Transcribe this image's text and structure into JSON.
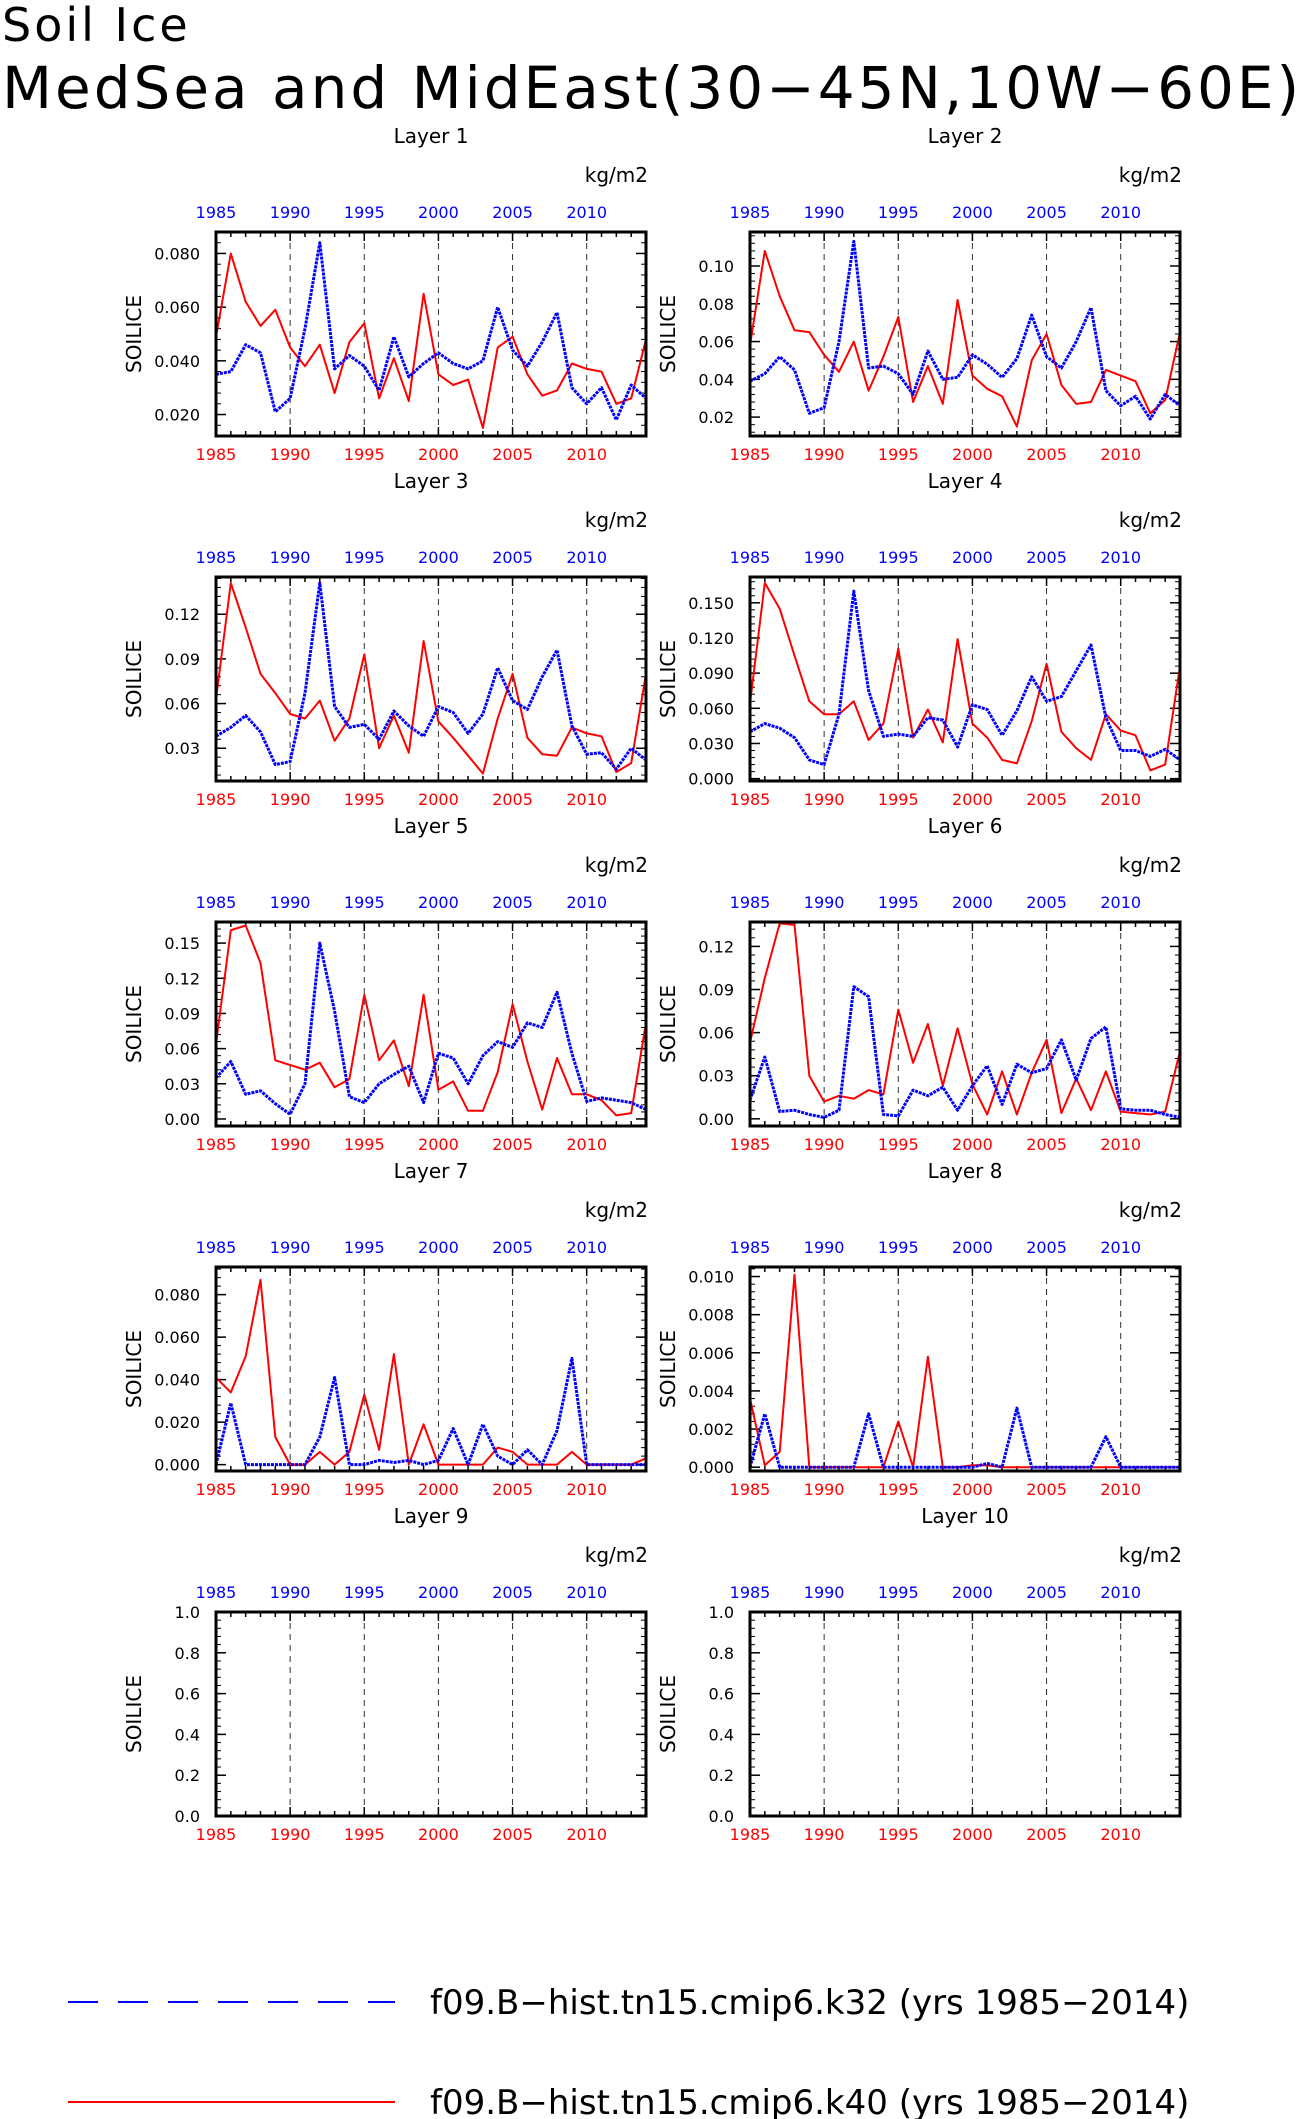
{
  "title": {
    "line1": "Soil Ice",
    "line2": "MedSea and MidEast(30−45N,10W−60E)"
  },
  "colors": {
    "k32": "#0000ff",
    "k40": "#ff0000",
    "axis": "#000000"
  },
  "units_label": "kg/m2",
  "ylabel": "SOILICE",
  "legend": [
    {
      "label": "f09.B−hist.tn15.cmip6.k32 (yrs 1985−2014)",
      "color": "#0000ff",
      "style": "dashed"
    },
    {
      "label": "f09.B−hist.tn15.cmip6.k40 (yrs 1985−2014)",
      "color": "#ff0000",
      "style": "solid"
    }
  ],
  "chart_data": [
    {
      "type": "line",
      "title": "Layer 1",
      "xlim": [
        1985,
        2014
      ],
      "ylim": [
        0.012,
        0.088
      ],
      "x_ticks": [
        1985,
        1990,
        1995,
        2000,
        2005,
        2010
      ],
      "y_ticks": [
        0.02,
        0.04,
        0.06,
        0.08
      ],
      "y_tick_labels": [
        "0.020",
        "0.040",
        "0.060",
        "0.080"
      ],
      "series": [
        {
          "name": "f09.B−hist.tn15.cmip6.k32",
          "values": [
            0.035,
            0.036,
            0.046,
            0.043,
            0.021,
            0.026,
            0.052,
            0.084,
            0.037,
            0.042,
            0.038,
            0.029,
            0.049,
            0.034,
            0.039,
            0.043,
            0.039,
            0.037,
            0.04,
            0.06,
            0.044,
            0.038,
            0.047,
            0.058,
            0.03,
            0.024,
            0.03,
            0.018,
            0.031,
            0.026
          ]
        },
        {
          "name": "f09.B−hist.tn15.cmip6.k40",
          "values": [
            0.049,
            0.08,
            0.062,
            0.053,
            0.059,
            0.045,
            0.038,
            0.046,
            0.028,
            0.047,
            0.054,
            0.026,
            0.041,
            0.025,
            0.065,
            0.035,
            0.031,
            0.033,
            0.015,
            0.045,
            0.049,
            0.035,
            0.027,
            0.029,
            0.039,
            0.037,
            0.036,
            0.024,
            0.026,
            0.048
          ]
        }
      ]
    },
    {
      "type": "line",
      "title": "Layer 2",
      "xlim": [
        1985,
        2014
      ],
      "ylim": [
        0.01,
        0.118
      ],
      "x_ticks": [
        1985,
        1990,
        1995,
        2000,
        2005,
        2010
      ],
      "y_ticks": [
        0.02,
        0.04,
        0.06,
        0.08,
        0.1
      ],
      "y_tick_labels": [
        "0.02",
        "0.04",
        "0.06",
        "0.08",
        "0.10"
      ],
      "series": [
        {
          "name": "f09.B−hist.tn15.cmip6.k32",
          "values": [
            0.039,
            0.043,
            0.052,
            0.045,
            0.022,
            0.025,
            0.06,
            0.113,
            0.046,
            0.047,
            0.043,
            0.032,
            0.055,
            0.04,
            0.041,
            0.053,
            0.048,
            0.041,
            0.051,
            0.074,
            0.052,
            0.046,
            0.06,
            0.078,
            0.034,
            0.026,
            0.031,
            0.019,
            0.032,
            0.026
          ]
        },
        {
          "name": "f09.B−hist.tn15.cmip6.k40",
          "values": [
            0.058,
            0.108,
            0.084,
            0.066,
            0.065,
            0.053,
            0.044,
            0.06,
            0.034,
            0.052,
            0.073,
            0.028,
            0.047,
            0.027,
            0.082,
            0.042,
            0.035,
            0.031,
            0.015,
            0.05,
            0.064,
            0.037,
            0.027,
            0.028,
            0.045,
            0.042,
            0.039,
            0.022,
            0.029,
            0.065
          ]
        }
      ]
    },
    {
      "type": "line",
      "title": "Layer 3",
      "xlim": [
        1985,
        2014
      ],
      "ylim": [
        0.008,
        0.145
      ],
      "x_ticks": [
        1985,
        1990,
        1995,
        2000,
        2005,
        2010
      ],
      "y_ticks": [
        0.03,
        0.06,
        0.09,
        0.12
      ],
      "y_tick_labels": [
        "0.03",
        "0.06",
        "0.09",
        "0.12"
      ],
      "series": [
        {
          "name": "f09.B−hist.tn15.cmip6.k32",
          "values": [
            0.038,
            0.044,
            0.052,
            0.041,
            0.019,
            0.021,
            0.067,
            0.141,
            0.058,
            0.044,
            0.046,
            0.036,
            0.055,
            0.045,
            0.038,
            0.058,
            0.054,
            0.04,
            0.053,
            0.084,
            0.062,
            0.056,
            0.078,
            0.096,
            0.045,
            0.026,
            0.027,
            0.016,
            0.03,
            0.022
          ]
        },
        {
          "name": "f09.B−hist.tn15.cmip6.k40",
          "values": [
            0.063,
            0.141,
            0.111,
            0.08,
            0.067,
            0.053,
            0.05,
            0.062,
            0.035,
            0.05,
            0.093,
            0.03,
            0.052,
            0.027,
            0.102,
            0.048,
            0.037,
            0.025,
            0.013,
            0.05,
            0.08,
            0.037,
            0.026,
            0.025,
            0.044,
            0.04,
            0.038,
            0.014,
            0.02,
            0.08
          ]
        }
      ]
    },
    {
      "type": "line",
      "title": "Layer 4",
      "xlim": [
        1985,
        2014
      ],
      "ylim": [
        -0.002,
        0.172
      ],
      "x_ticks": [
        1985,
        1990,
        1995,
        2000,
        2005,
        2010
      ],
      "y_ticks": [
        0.0,
        0.03,
        0.06,
        0.09,
        0.12,
        0.15
      ],
      "y_tick_labels": [
        "0.000",
        "0.030",
        "0.060",
        "0.090",
        "0.120",
        "0.150"
      ],
      "series": [
        {
          "name": "f09.B−hist.tn15.cmip6.k32",
          "values": [
            0.04,
            0.047,
            0.043,
            0.035,
            0.016,
            0.012,
            0.055,
            0.16,
            0.075,
            0.036,
            0.038,
            0.036,
            0.052,
            0.05,
            0.027,
            0.063,
            0.059,
            0.037,
            0.058,
            0.087,
            0.066,
            0.07,
            0.092,
            0.114,
            0.052,
            0.024,
            0.024,
            0.019,
            0.025,
            0.016
          ]
        },
        {
          "name": "f09.B−hist.tn15.cmip6.k40",
          "values": [
            0.064,
            0.167,
            0.145,
            0.105,
            0.066,
            0.055,
            0.055,
            0.066,
            0.033,
            0.047,
            0.111,
            0.035,
            0.059,
            0.031,
            0.119,
            0.047,
            0.035,
            0.016,
            0.013,
            0.049,
            0.098,
            0.04,
            0.026,
            0.016,
            0.055,
            0.041,
            0.037,
            0.007,
            0.012,
            0.096
          ]
        }
      ]
    },
    {
      "type": "line",
      "title": "Layer 5",
      "xlim": [
        1985,
        2014
      ],
      "ylim": [
        -0.006,
        0.168
      ],
      "x_ticks": [
        1985,
        1990,
        1995,
        2000,
        2005,
        2010
      ],
      "y_ticks": [
        0.0,
        0.03,
        0.06,
        0.09,
        0.12,
        0.15
      ],
      "y_tick_labels": [
        "0.00",
        "0.03",
        "0.06",
        "0.09",
        "0.12",
        "0.15"
      ],
      "series": [
        {
          "name": "f09.B−hist.tn15.cmip6.k32",
          "values": [
            0.035,
            0.049,
            0.021,
            0.024,
            0.013,
            0.004,
            0.03,
            0.15,
            0.092,
            0.019,
            0.014,
            0.03,
            0.038,
            0.045,
            0.014,
            0.056,
            0.052,
            0.03,
            0.054,
            0.066,
            0.061,
            0.082,
            0.078,
            0.108,
            0.056,
            0.015,
            0.018,
            0.016,
            0.014,
            0.008
          ]
        },
        {
          "name": "f09.B−hist.tn15.cmip6.k40",
          "values": [
            0.064,
            0.161,
            0.165,
            0.133,
            0.05,
            0.046,
            0.042,
            0.048,
            0.027,
            0.034,
            0.106,
            0.05,
            0.067,
            0.028,
            0.106,
            0.025,
            0.032,
            0.007,
            0.007,
            0.04,
            0.098,
            0.049,
            0.008,
            0.052,
            0.021,
            0.021,
            0.016,
            0.003,
            0.005,
            0.082
          ]
        }
      ]
    },
    {
      "type": "line",
      "title": "Layer 6",
      "xlim": [
        1985,
        2014
      ],
      "ylim": [
        -0.005,
        0.137
      ],
      "x_ticks": [
        1985,
        1990,
        1995,
        2000,
        2005,
        2010
      ],
      "y_ticks": [
        0.0,
        0.03,
        0.06,
        0.09,
        0.12
      ],
      "y_tick_labels": [
        "0.00",
        "0.03",
        "0.06",
        "0.09",
        "0.12"
      ],
      "series": [
        {
          "name": "f09.B−hist.tn15.cmip6.k32",
          "values": [
            0.013,
            0.043,
            0.005,
            0.006,
            0.003,
            0.001,
            0.006,
            0.092,
            0.085,
            0.003,
            0.002,
            0.02,
            0.016,
            0.022,
            0.006,
            0.023,
            0.037,
            0.01,
            0.038,
            0.032,
            0.035,
            0.055,
            0.027,
            0.056,
            0.064,
            0.007,
            0.006,
            0.006,
            0.003,
            0.001
          ]
        },
        {
          "name": "f09.B−hist.tn15.cmip6.k40",
          "values": [
            0.053,
            0.098,
            0.136,
            0.135,
            0.03,
            0.012,
            0.016,
            0.014,
            0.02,
            0.017,
            0.076,
            0.039,
            0.066,
            0.023,
            0.063,
            0.024,
            0.003,
            0.033,
            0.003,
            0.032,
            0.055,
            0.004,
            0.028,
            0.006,
            0.033,
            0.005,
            0.004,
            0.003,
            0.005,
            0.047
          ]
        }
      ]
    },
    {
      "type": "line",
      "title": "Layer 7",
      "xlim": [
        1985,
        2014
      ],
      "ylim": [
        -0.003,
        0.093
      ],
      "x_ticks": [
        1985,
        1990,
        1995,
        2000,
        2005,
        2010
      ],
      "y_ticks": [
        0.0,
        0.02,
        0.04,
        0.06,
        0.08
      ],
      "y_tick_labels": [
        "0.000",
        "0.020",
        "0.040",
        "0.060",
        "0.080"
      ],
      "series": [
        {
          "name": "f09.B−hist.tn15.cmip6.k32",
          "values": [
            0.0,
            0.029,
            0.0,
            0.0,
            0.0,
            0.0,
            0.0,
            0.013,
            0.041,
            0.0,
            0.0,
            0.002,
            0.001,
            0.002,
            0.0,
            0.002,
            0.017,
            0.0,
            0.019,
            0.004,
            0.0,
            0.007,
            0.0,
            0.016,
            0.05,
            0.0,
            0.0,
            0.0,
            0.0,
            0.0
          ]
        },
        {
          "name": "f09.B−hist.tn15.cmip6.k40",
          "values": [
            0.041,
            0.034,
            0.051,
            0.087,
            0.013,
            0.0,
            0.0,
            0.006,
            0.0,
            0.006,
            0.033,
            0.007,
            0.052,
            0.0,
            0.019,
            0.0,
            0.0,
            0.0,
            0.0,
            0.008,
            0.006,
            0.0,
            0.0,
            0.0,
            0.006,
            0.0,
            0.0,
            0.0,
            0.0,
            0.003
          ]
        }
      ]
    },
    {
      "type": "line",
      "title": "Layer 8",
      "xlim": [
        1985,
        2014
      ],
      "ylim": [
        -0.0002,
        0.0105
      ],
      "x_ticks": [
        1985,
        1990,
        1995,
        2000,
        2005,
        2010
      ],
      "y_ticks": [
        0.0,
        0.002,
        0.004,
        0.006,
        0.008,
        0.01
      ],
      "y_tick_labels": [
        "0.000",
        "0.002",
        "0.004",
        "0.006",
        "0.008",
        "0.010"
      ],
      "series": [
        {
          "name": "f09.B−hist.tn15.cmip6.k32",
          "values": [
            0.0,
            0.0028,
            0.0,
            0.0,
            0.0,
            0.0,
            0.0,
            0.0,
            0.0028,
            0.0,
            0.0,
            0.0,
            0.0,
            0.0,
            0.0,
            0.0,
            0.0002,
            0.0,
            0.0031,
            0.0,
            0.0,
            0.0,
            0.0,
            0.0,
            0.0016,
            0.0,
            0.0,
            0.0,
            0.0,
            0.0
          ]
        },
        {
          "name": "f09.B−hist.tn15.cmip6.k40",
          "values": [
            0.0036,
            0.0001,
            0.0008,
            0.0101,
            0.0,
            0.0,
            0.0,
            0.0,
            0.0,
            0.0,
            0.0024,
            0.0,
            0.0058,
            0.0,
            0.0,
            0.0001,
            0.0001,
            0.0,
            0.0,
            0.0,
            0.0,
            0.0,
            0.0,
            0.0,
            0.0,
            0.0,
            0.0,
            0.0,
            0.0,
            0.0
          ]
        }
      ]
    },
    {
      "type": "line",
      "title": "Layer 9",
      "xlim": [
        1985,
        2014
      ],
      "ylim": [
        0.0,
        1.0
      ],
      "x_ticks": [
        1985,
        1990,
        1995,
        2000,
        2005,
        2010
      ],
      "y_ticks": [
        0.0,
        0.2,
        0.4,
        0.6,
        0.8,
        1.0
      ],
      "y_tick_labels": [
        "0.0",
        "0.2",
        "0.4",
        "0.6",
        "0.8",
        "1.0"
      ],
      "series": []
    },
    {
      "type": "line",
      "title": "Layer 10",
      "xlim": [
        1985,
        2014
      ],
      "ylim": [
        0.0,
        1.0
      ],
      "x_ticks": [
        1985,
        1990,
        1995,
        2000,
        2005,
        2010
      ],
      "y_ticks": [
        0.0,
        0.2,
        0.4,
        0.6,
        0.8,
        1.0
      ],
      "y_tick_labels": [
        "0.0",
        "0.2",
        "0.4",
        "0.6",
        "0.8",
        "1.0"
      ],
      "series": []
    }
  ]
}
